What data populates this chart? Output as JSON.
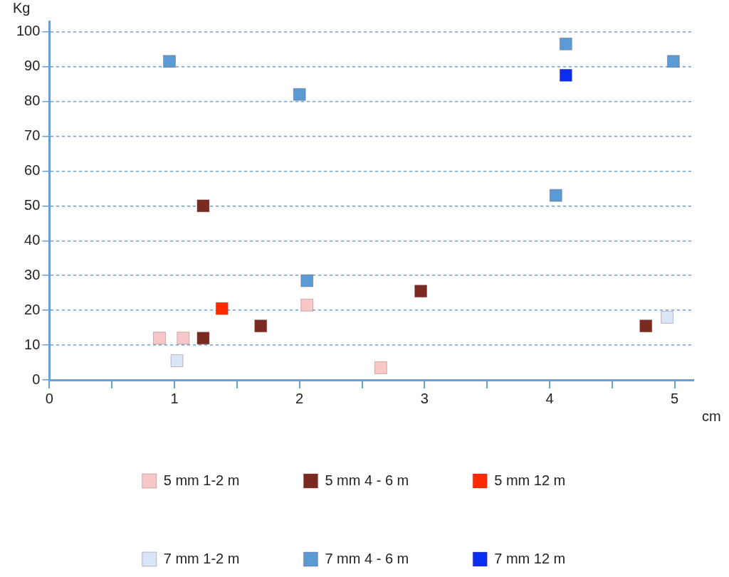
{
  "chart_data": {
    "type": "scatter",
    "xlabel": "cm",
    "ylabel": "Kg",
    "xlim": [
      0,
      5.15
    ],
    "ylim": [
      0,
      103
    ],
    "xticks": [
      0,
      {
        "value": 0.5,
        "label": null
      },
      1,
      {
        "value": 1.5,
        "label": null
      },
      2,
      {
        "value": 2.5,
        "label": null
      },
      3,
      {
        "value": 3.5,
        "label": null
      },
      4,
      {
        "value": 4.5,
        "label": null
      },
      5
    ],
    "yticks": [
      0,
      10,
      20,
      30,
      40,
      50,
      60,
      70,
      80,
      90,
      100
    ],
    "grid": "y",
    "legend": "bottom",
    "marker": "square",
    "series": [
      {
        "name": "5 mm 1-2 m",
        "color": "#f8c8c8",
        "x": [
          0.88,
          1.07,
          2.06,
          2.65
        ],
        "values": [
          12,
          12,
          21.5,
          3.5
        ]
      },
      {
        "name": "5 mm 4 - 6 m",
        "color": "#7b2a22",
        "x": [
          1.23,
          1.23,
          1.69,
          2.97,
          4.77
        ],
        "values": [
          50,
          12,
          15.5,
          25.5,
          15.5
        ]
      },
      {
        "name": "5 mm 12 m",
        "color": "#ff2a00",
        "x": [
          1.38
        ],
        "values": [
          20.5
        ]
      },
      {
        "name": "7 mm 1-2 m",
        "color": "#d8e6f8",
        "x": [
          1.02,
          4.94
        ],
        "values": [
          5.5,
          18
        ]
      },
      {
        "name": "7 mm 4 - 6 m",
        "color": "#5b9bd5",
        "x": [
          0.96,
          2.0,
          2.06,
          4.05,
          4.13,
          4.99
        ],
        "values": [
          91.5,
          82,
          28.5,
          53,
          96.5,
          91.5
        ]
      },
      {
        "name": "7 mm 12 m",
        "color": "#0a2ef0",
        "x": [
          4.13
        ],
        "values": [
          87.5
        ]
      }
    ]
  }
}
